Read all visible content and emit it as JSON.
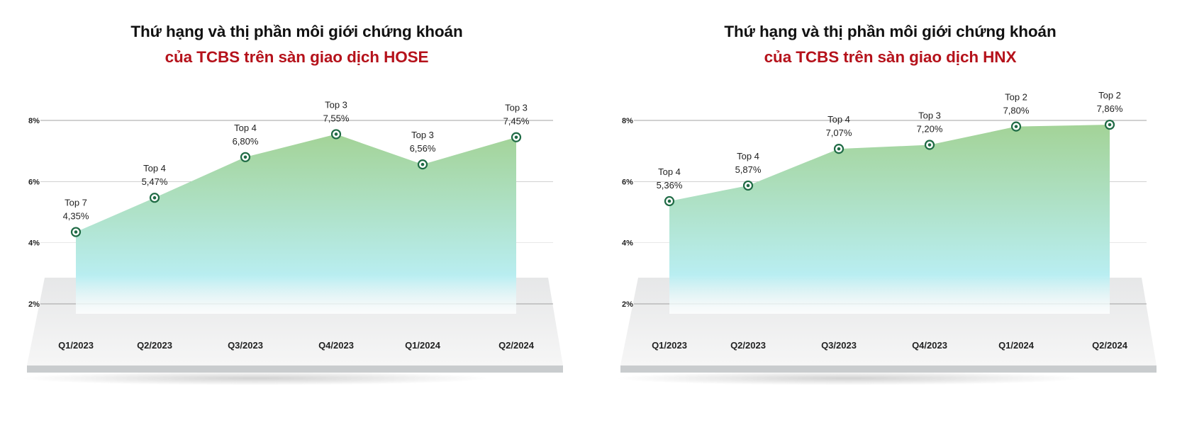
{
  "colors": {
    "title_primary": "#111111",
    "title_accent": "#b5121b",
    "area_top": "#a3d397",
    "area_bottom": "#b9eef2",
    "marker": "#1f6b45",
    "gridline": "#999999"
  },
  "chart_data": [
    {
      "type": "area",
      "title": "Thứ hạng và thị phần môi giới chứng khoán",
      "subtitle": "của TCBS trên sàn giao dịch HOSE",
      "categories": [
        "Q1/2023",
        "Q2/2023",
        "Q3/2023",
        "Q4/2023",
        "Q1/2024",
        "Q2/2024"
      ],
      "values": [
        4.35,
        5.47,
        6.8,
        7.55,
        6.56,
        7.45
      ],
      "value_labels": [
        "4,35%",
        "5,47%",
        "6,80%",
        "7,55%",
        "6,56%",
        "7,45%"
      ],
      "rank_labels": [
        "Top 7",
        "Top 4",
        "Top 4",
        "Top 3",
        "Top 3",
        "Top 3"
      ],
      "yticks": [
        "2%",
        "4%",
        "6%",
        "8%"
      ],
      "ylim": [
        2,
        8
      ],
      "xlabel": "",
      "ylabel": "",
      "grid": true
    },
    {
      "type": "area",
      "title": "Thứ hạng và thị phần môi giới chứng khoán",
      "subtitle": "của TCBS trên sàn giao dịch HNX",
      "categories": [
        "Q1/2023",
        "Q2/2023",
        "Q3/2023",
        "Q4/2023",
        "Q1/2024",
        "Q2/2024"
      ],
      "values": [
        5.36,
        5.87,
        7.07,
        7.2,
        7.8,
        7.86
      ],
      "value_labels": [
        "5,36%",
        "5,87%",
        "7,07%",
        "7,20%",
        "7,80%",
        "7,86%"
      ],
      "rank_labels": [
        "Top 4",
        "Top 4",
        "Top 4",
        "Top 3",
        "Top 2",
        "Top 2"
      ],
      "yticks": [
        "2%",
        "4%",
        "6%",
        "8%"
      ],
      "ylim": [
        2,
        8
      ],
      "xlabel": "",
      "ylabel": "",
      "grid": true
    }
  ]
}
